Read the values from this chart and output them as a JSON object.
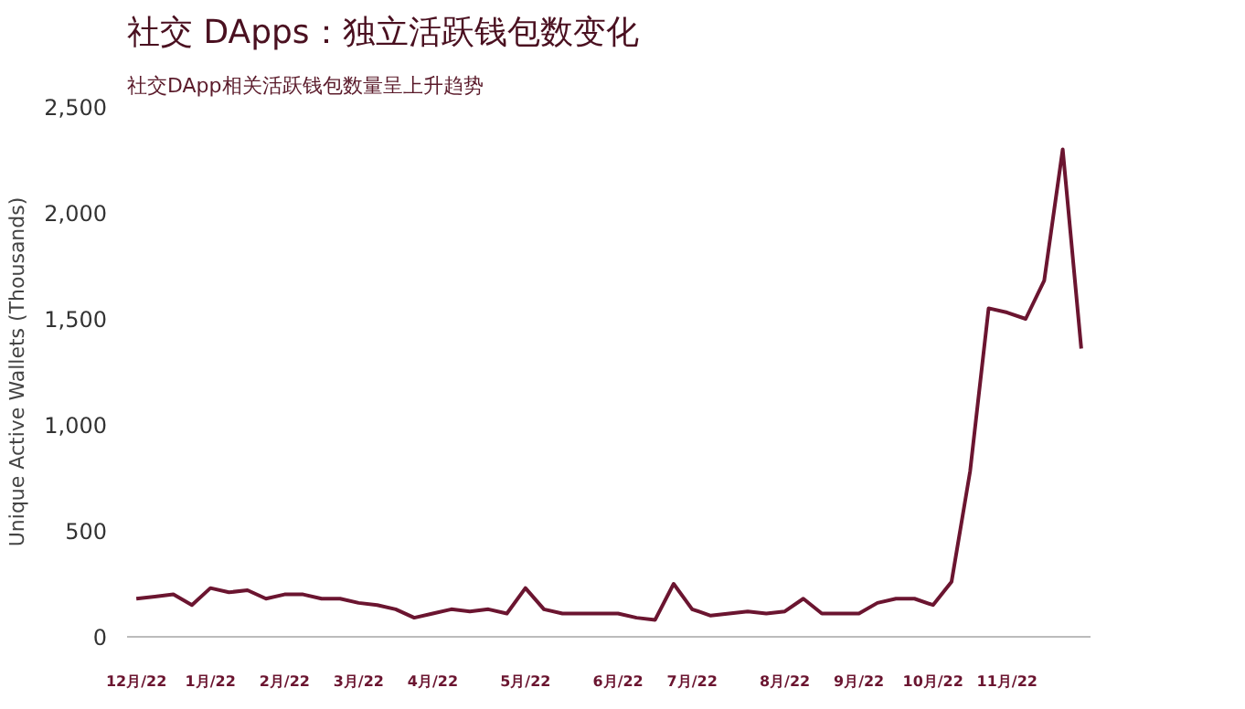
{
  "chart_data": {
    "type": "line",
    "title": "社交 DApps：独立活跃钱包数变化",
    "subtitle": "社交DApp相关活跃钱包数量呈上升趋势",
    "ylabel": "Unique Active Wallets (Thousands)",
    "categories": [
      "12月/22",
      null,
      null,
      null,
      "1月/22",
      null,
      null,
      null,
      "2月/22",
      null,
      null,
      null,
      "3月/22",
      null,
      null,
      null,
      "4月/22",
      null,
      null,
      null,
      null,
      "5月/22",
      null,
      null,
      null,
      null,
      "6月/22",
      null,
      null,
      null,
      "7月/22",
      null,
      null,
      null,
      null,
      "8月/22",
      null,
      null,
      null,
      "9月/22",
      null,
      null,
      null,
      "10月/22",
      null,
      null,
      null,
      "11月/22",
      null,
      null,
      null,
      null
    ],
    "series": [
      {
        "color": "#6b1530",
        "values": [
          180,
          190,
          200,
          150,
          230,
          210,
          220,
          180,
          200,
          200,
          180,
          180,
          160,
          150,
          130,
          90,
          110,
          130,
          120,
          130,
          110,
          230,
          130,
          110,
          110,
          110,
          110,
          90,
          80,
          250,
          130,
          100,
          110,
          120,
          110,
          120,
          180,
          110,
          110,
          110,
          160,
          180,
          180,
          150,
          260,
          780,
          1550,
          1530,
          1500,
          1680,
          2300,
          1360
        ]
      }
    ],
    "ylim": [
      0,
      2500
    ],
    "yticks": [
      {
        "value": 0,
        "label": "0"
      },
      {
        "value": 500,
        "label": "500"
      },
      {
        "value": 1000,
        "label": "1,000"
      },
      {
        "value": 1500,
        "label": "1,500"
      },
      {
        "value": 2000,
        "label": "2,000"
      },
      {
        "value": 2500,
        "label": "2,500"
      }
    ],
    "grid": false,
    "marker": "none",
    "line_style": "solid"
  }
}
